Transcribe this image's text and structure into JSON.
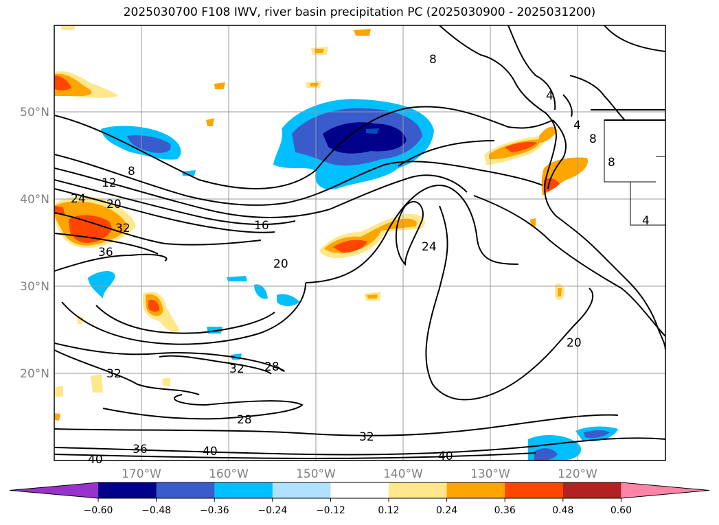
{
  "title": "2025030700 F108 IWV, river basin precipitation PC (2025030900 - 2025031200)",
  "map": {
    "lon_labels": [
      "170°W",
      "160°W",
      "150°W",
      "140°W",
      "130°W",
      "120°W"
    ],
    "lat_labels": [
      "50°N",
      "40°N",
      "30°N",
      "20°N"
    ],
    "contour_labels": [
      "8",
      "12",
      "16",
      "20",
      "20",
      "24",
      "24",
      "20",
      "28",
      "32",
      "32",
      "28",
      "32",
      "36",
      "36",
      "40",
      "40",
      "40",
      "32",
      "4",
      "4",
      "8",
      "8",
      "8",
      "4"
    ]
  },
  "colorbar": {
    "ticks": [
      "−0.60",
      "−0.48",
      "−0.36",
      "−0.24",
      "−0.12",
      "0.12",
      "0.24",
      "0.36",
      "0.48",
      "0.60"
    ],
    "colors": [
      "#9932cc",
      "#00008b",
      "#3a5bcc",
      "#00bfff",
      "#b0e2ff",
      "#ffffff",
      "#ffe88c",
      "#ffa500",
      "#ff4500",
      "#b22222",
      "#ff85a8"
    ]
  }
}
